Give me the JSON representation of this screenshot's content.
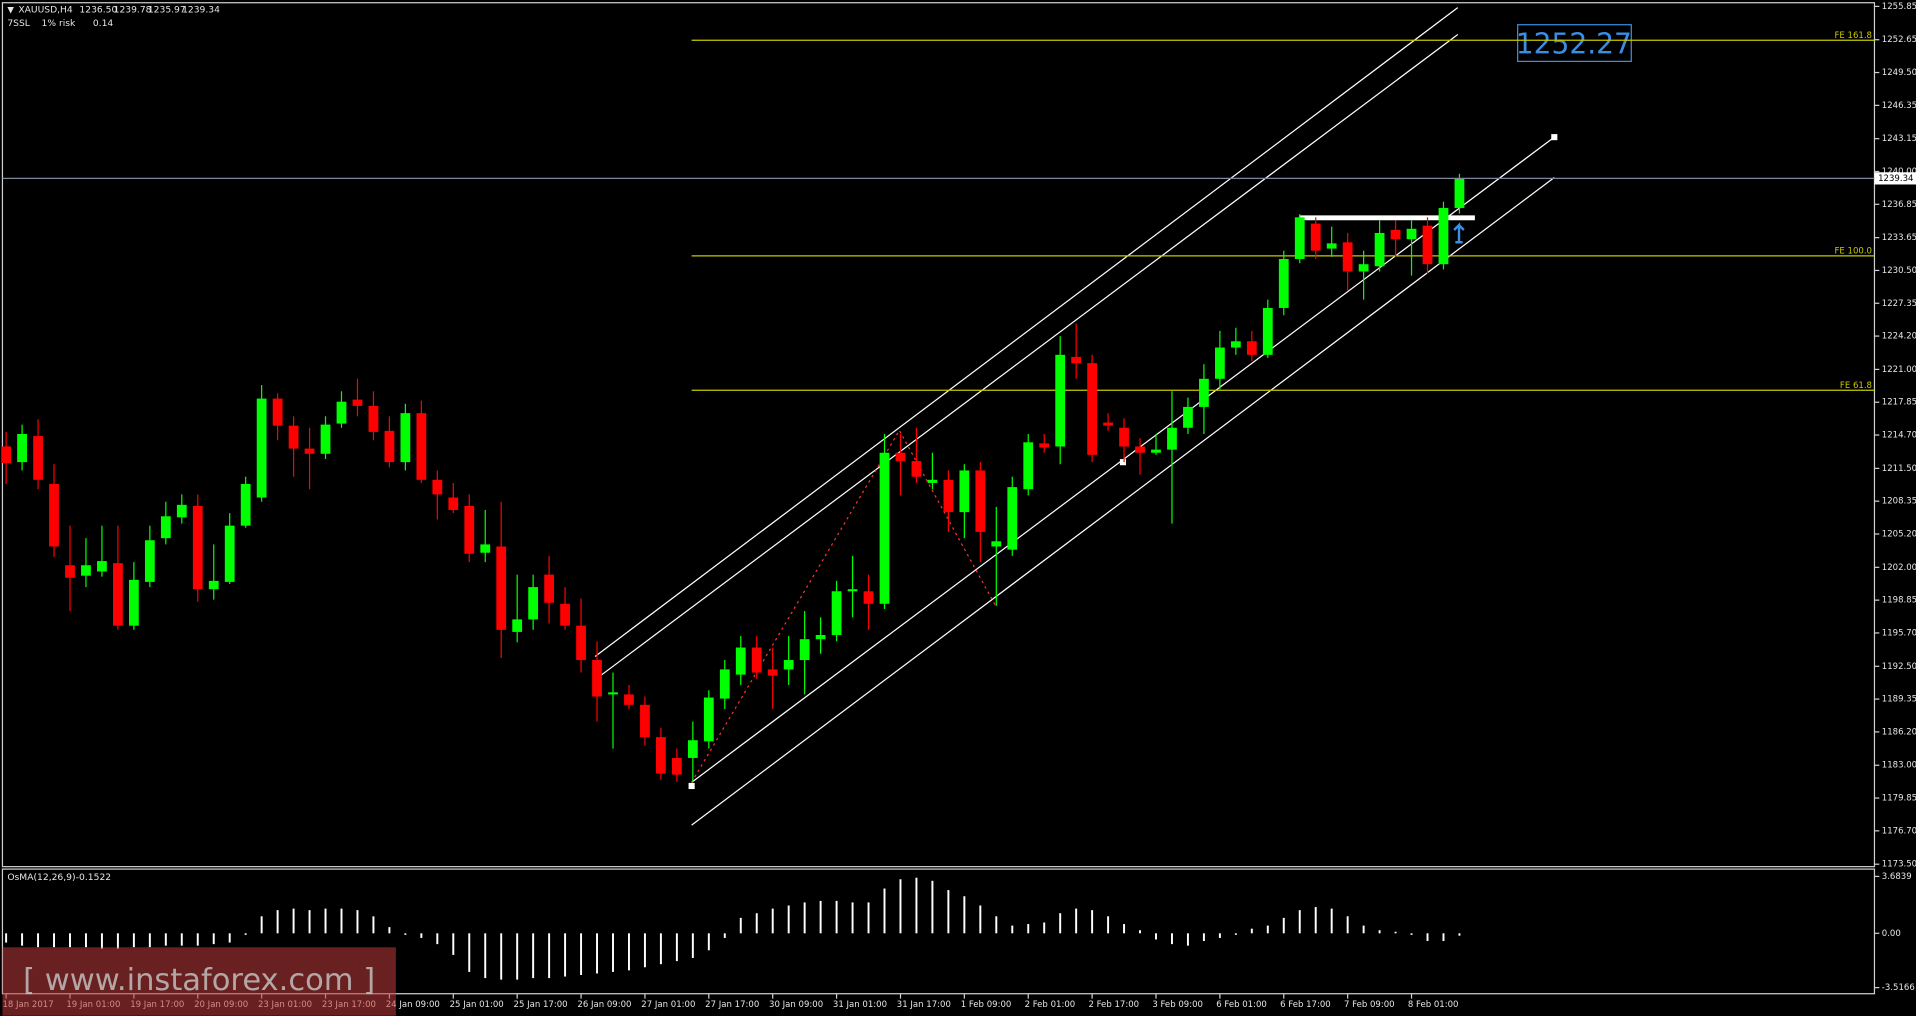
{
  "chart_data": {
    "type": "candlestick",
    "header": {
      "symbol": "XAUUSD,H4",
      "prices": [
        "1236.50",
        "1239.78",
        "1235.97",
        "1239.34"
      ],
      "indicator": [
        "7SSL",
        "1% risk",
        "0.14"
      ]
    },
    "colors": {
      "up": "#00ff00",
      "down": "#ff0000",
      "level": "#c8c800",
      "osma": "#ffffff"
    },
    "categories": [
      "18 Jan 2017",
      null,
      null,
      null,
      "19 Jan 01:00",
      null,
      null,
      null,
      "19 Jan 17:00",
      null,
      null,
      null,
      "20 Jan 09:00",
      null,
      null,
      null,
      "23 Jan 01:00",
      null,
      null,
      null,
      "23 Jan 17:00",
      null,
      null,
      null,
      "24 Jan 09:00",
      null,
      null,
      null,
      "25 Jan 01:00",
      null,
      null,
      null,
      "25 Jan 17:00",
      null,
      null,
      null,
      "26 Jan 09:00",
      null,
      null,
      null,
      "27 Jan 01:00",
      null,
      null,
      null,
      "27 Jan 17:00",
      null,
      null,
      null,
      "30 Jan 09:00",
      null,
      null,
      null,
      "31 Jan 01:00",
      null,
      null,
      null,
      "31 Jan 17:00",
      null,
      null,
      null,
      "1 Feb 09:00",
      null,
      null,
      null,
      "2 Feb 01:00",
      null,
      null,
      null,
      "2 Feb 17:00",
      null,
      null,
      null,
      "3 Feb 09:00",
      null,
      null,
      null,
      "6 Feb 01:00",
      null,
      null,
      null,
      "6 Feb 17:00",
      null,
      null,
      null,
      "7 Feb 09:00",
      null,
      null,
      null,
      "8 Feb 01:00",
      null,
      null,
      null
    ],
    "open": [
      1213.6,
      1212.1,
      1214.6,
      1210.0,
      1202.2,
      1201.2,
      1201.6,
      1202.4,
      1196.4,
      1200.6,
      1204.8,
      1206.8,
      1207.9,
      1199.9,
      1200.6,
      1206.0,
      1208.7,
      1218.2,
      1215.6,
      1213.4,
      1212.9,
      1215.8,
      1218.1,
      1217.5,
      1215.1,
      1212.1,
      1216.8,
      1210.4,
      1208.7,
      1207.9,
      1203.4,
      1204.0,
      1195.8,
      1197.0,
      1201.3,
      1198.5,
      1196.4,
      1193.1,
      1189.8,
      1189.8,
      1188.8,
      1185.7,
      1183.7,
      1183.7,
      1185.3,
      1189.4,
      1191.7,
      1194.3,
      1192.2,
      1192.2,
      1193.1,
      1195.1,
      1195.5,
      1199.7,
      1199.7,
      1198.5,
      1213.0,
      1212.2,
      1210.1,
      1210.4,
      1207.3,
      1211.3,
      1204.0,
      1203.7,
      1209.5,
      1213.9,
      1213.6,
      1222.2,
      1221.6,
      1215.9,
      1215.4,
      1213.6,
      1213.0,
      1213.3,
      1215.4,
      1217.4,
      1220.1,
      1223.1,
      1223.7,
      1222.4,
      1226.9,
      1231.6,
      1235.0,
      1232.6,
      1233.2,
      1230.4,
      1230.9,
      1234.4,
      1233.5,
      1234.8,
      1231.1,
      1236.5
    ],
    "high": [
      1215,
      1215.7,
      1216.2,
      1211.9,
      1206.0,
      1204.8,
      1206.0,
      1206.0,
      1202.5,
      1206.0,
      1208.3,
      1209.0,
      1209.0,
      1204.2,
      1207.2,
      1210.7,
      1219.5,
      1218.7,
      1216.5,
      1215.4,
      1216.5,
      1218.9,
      1220.1,
      1218.9,
      1216.5,
      1217.7,
      1218.0,
      1211.3,
      1210.1,
      1209.0,
      1207.5,
      1208.3,
      1201.3,
      1201.3,
      1203.1,
      1200.1,
      1199.0,
      1194.9,
      1191.9,
      1190.7,
      1189.6,
      1186.6,
      1184.6,
      1187.2,
      1190.2,
      1193.1,
      1195.4,
      1195.4,
      1194.3,
      1195.4,
      1197.8,
      1197.2,
      1200.7,
      1203.1,
      1201.3,
      1214.8,
      1214.8,
      1215.4,
      1213.0,
      1211.3,
      1211.9,
      1212.1,
      1207.8,
      1210.7,
      1214.8,
      1214.8,
      1224.2,
      1225.4,
      1222.4,
      1216.8,
      1216.3,
      1214.4,
      1214.8,
      1218.9,
      1218.3,
      1221.5,
      1224.7,
      1225.0,
      1224.7,
      1227.7,
      1232.4,
      1235.9,
      1235.6,
      1234.7,
      1234.1,
      1232.4,
      1235.3,
      1235.3,
      1235.3,
      1235.6,
      1237.1,
      1239.78
    ],
    "low": [
      1210,
      1211.3,
      1209.5,
      1203.0,
      1197.8,
      1200.1,
      1201.1,
      1196.0,
      1196.0,
      1200.1,
      1204.2,
      1206.2,
      1198.7,
      1198.9,
      1200.4,
      1205.8,
      1208.3,
      1214.2,
      1210.7,
      1209.5,
      1212.4,
      1215.4,
      1216.5,
      1214.2,
      1211.6,
      1211.3,
      1210.1,
      1206.6,
      1207.2,
      1202.5,
      1202.5,
      1193.3,
      1194.8,
      1196.0,
      1196.6,
      1196.0,
      1191.9,
      1187.2,
      1184.6,
      1188.4,
      1184.9,
      1181.6,
      1181.4,
      1181.4,
      1184.6,
      1188.4,
      1190.7,
      1191.3,
      1188.4,
      1190.7,
      1189.8,
      1193.7,
      1194.9,
      1197.2,
      1196.0,
      1198.0,
      1208.9,
      1210.1,
      1209.5,
      1205.4,
      1204.8,
      1202.5,
      1198.3,
      1203.1,
      1208.9,
      1213.0,
      1211.9,
      1220.1,
      1212.1,
      1215.1,
      1212.1,
      1210.9,
      1212.8,
      1206.2,
      1214.8,
      1214.8,
      1219.1,
      1222.4,
      1221.8,
      1222.1,
      1226.2,
      1231.2,
      1231.6,
      1231.8,
      1228.6,
      1227.7,
      1230.4,
      1231.8,
      1230.0,
      1230.2,
      1230.6,
      1235.97
    ],
    "close": [
      1212.0,
      1214.8,
      1210.4,
      1204.0,
      1201.0,
      1202.2,
      1202.6,
      1196.4,
      1200.8,
      1204.6,
      1206.9,
      1208.0,
      1199.9,
      1200.7,
      1206.0,
      1210.0,
      1218.2,
      1215.6,
      1213.4,
      1212.9,
      1215.7,
      1217.9,
      1217.5,
      1215.0,
      1212.1,
      1216.8,
      1210.4,
      1209.0,
      1207.5,
      1203.3,
      1204.2,
      1196.0,
      1197.0,
      1200.1,
      1198.6,
      1196.4,
      1193.1,
      1189.6,
      1190.0,
      1188.8,
      1185.7,
      1182.2,
      1182.1,
      1185.4,
      1189.5,
      1192.2,
      1194.3,
      1191.9,
      1191.6,
      1193.1,
      1195.1,
      1195.5,
      1199.7,
      1199.9,
      1198.5,
      1213.0,
      1212.2,
      1210.7,
      1210.4,
      1207.3,
      1211.3,
      1205.4,
      1204.5,
      1209.7,
      1214.0,
      1213.5,
      1222.4,
      1221.6,
      1212.8,
      1215.6,
      1213.6,
      1213.0,
      1213.3,
      1215.4,
      1217.4,
      1220.1,
      1223.1,
      1223.7,
      1222.4,
      1226.9,
      1231.6,
      1235.6,
      1232.4,
      1233.1,
      1230.4,
      1231.1,
      1234.1,
      1233.5,
      1234.5,
      1231.1,
      1236.5,
      1239.34
    ],
    "ylim": [
      1173.5,
      1255.85
    ],
    "yticks": [
      1255.85,
      1252.65,
      {
        "value": 1249.5,
        "label": "1249.50"
      },
      1246.35,
      1243.15,
      {
        "value": 1240,
        "label": "1240.00"
      },
      1236.85,
      1233.65,
      {
        "value": 1230.5,
        "label": "1230.50"
      },
      1227.35,
      {
        "value": 1224.2,
        "label": "1224.20"
      },
      {
        "value": 1221,
        "label": "1221.00"
      },
      1217.85,
      {
        "value": 1214.7,
        "label": "1214.70"
      },
      {
        "value": 1211.5,
        "label": "1211.50"
      },
      1208.35,
      {
        "value": 1205.2,
        "label": "1205.20"
      },
      {
        "value": 1202,
        "label": "1202.00"
      },
      1198.85,
      {
        "value": 1195.7,
        "label": "1195.70"
      },
      {
        "value": 1192.5,
        "label": "1192.50"
      },
      1189.35,
      {
        "value": 1186.2,
        "label": "1186.20"
      },
      {
        "value": 1183,
        "label": "1183.00"
      },
      1179.85,
      {
        "value": 1176.7,
        "label": "1176.70"
      },
      {
        "value": 1173.5,
        "label": "1173.50"
      }
    ],
    "levels": [
      {
        "label": "FE 161.8",
        "value": 1252.6
      },
      {
        "label": "FE 100.0",
        "value": 1231.9
      },
      {
        "label": "FE 61.8",
        "value": 1219.0
      }
    ],
    "target_label": "1252.27",
    "osma": {
      "name": "OsMA(12,26,9)",
      "ylim": [
        -3.5166,
        3.6839
      ],
      "yticks": [
        3.6839,
        {
          "value": 0,
          "label": "0.00"
        },
        -3.5166
      ],
      "values": [
        -0.6,
        -0.8,
        -0.9,
        -0.9,
        -0.9,
        -0.9,
        -1.0,
        -1.0,
        -0.9,
        -0.9,
        -0.8,
        -0.8,
        -0.8,
        -0.7,
        -0.6,
        -0.1,
        1.1,
        1.5,
        1.6,
        1.5,
        1.6,
        1.6,
        1.5,
        1.1,
        0.4,
        -0.1,
        -0.3,
        -0.7,
        -1.4,
        -2.5,
        -2.9,
        -3.0,
        -3.0,
        -2.9,
        -2.9,
        -2.8,
        -2.7,
        -2.6,
        -2.5,
        -2.4,
        -2.2,
        -2.0,
        -1.8,
        -1.6,
        -1.1,
        -0.3,
        1.0,
        1.3,
        1.6,
        1.8,
        2.0,
        2.1,
        2.1,
        2.0,
        2.0,
        2.9,
        3.5,
        3.6,
        3.4,
        2.8,
        2.4,
        1.8,
        1.1,
        0.5,
        0.6,
        0.7,
        1.3,
        1.6,
        1.5,
        1.1,
        0.6,
        0.2,
        -0.4,
        -0.7,
        -0.8,
        -0.5,
        -0.3,
        -0.1,
        0.3,
        0.5,
        1.0,
        1.5,
        1.7,
        1.6,
        1.1,
        0.5,
        0.2,
        0.1,
        -0.1,
        -0.5,
        -0.5,
        -0.1522
      ]
    },
    "watermark": "[ www.instaforex.com ]"
  }
}
